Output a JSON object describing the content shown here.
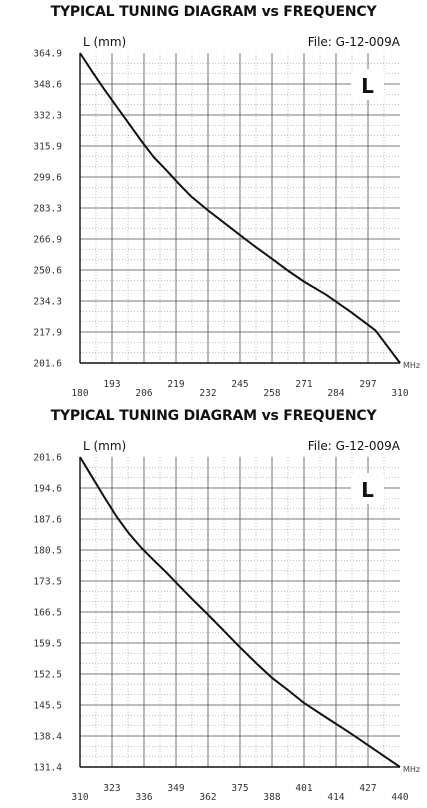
{
  "chart_data": [
    {
      "type": "line",
      "title": "TYPICAL TUNING DIAGRAM vs FREQUENCY",
      "ylabel": "L (mm)",
      "xunit": "MHz",
      "file": "File:  G-12-009A",
      "badge": "L",
      "xlim": [
        180,
        310
      ],
      "ylim": [
        201.6,
        364.9
      ],
      "xticks_bottom": [
        "180",
        "206",
        "232",
        "258",
        "284",
        "310"
      ],
      "xticks_top": [
        "193",
        "219",
        "245",
        "271",
        "297"
      ],
      "yticks": [
        "364.9",
        "348.6",
        "332.3",
        "315.9",
        "299.6",
        "283.3",
        "266.9",
        "250.6",
        "234.3",
        "217.9",
        "201.6"
      ],
      "grid": true,
      "series": [
        {
          "x": [
            180,
            185,
            190,
            195,
            200,
            205,
            210,
            215,
            220,
            225,
            232,
            240,
            245,
            250,
            258,
            265,
            271,
            280,
            290,
            300,
            310
          ],
          "y": [
            364.9,
            355.0,
            345.5,
            336.5,
            327.5,
            318.5,
            310.0,
            303.2,
            296.2,
            289.5,
            282.0,
            274.0,
            269.0,
            264.0,
            256.5,
            249.8,
            244.5,
            237.5,
            228.5,
            218.8,
            201.6
          ]
        }
      ]
    },
    {
      "type": "line",
      "title": "TYPICAL TUNING DIAGRAM vs FREQUENCY",
      "ylabel": "L (mm)",
      "xunit": "MHz",
      "file": "File:  G-12-009A",
      "badge": "L",
      "xlim": [
        310,
        440
      ],
      "ylim": [
        131.4,
        201.6
      ],
      "xticks_bottom": [
        "310",
        "336",
        "362",
        "388",
        "414",
        "440"
      ],
      "xticks_top": [
        "323",
        "349",
        "375",
        "401",
        "427"
      ],
      "yticks": [
        "201.6",
        "194.6",
        "187.6",
        "180.5",
        "173.5",
        "166.5",
        "159.5",
        "152.5",
        "145.5",
        "138.4",
        "131.4"
      ],
      "grid": true,
      "series": [
        {
          "x": [
            310,
            315,
            320,
            325,
            330,
            335,
            340,
            345,
            350,
            356,
            362,
            368,
            375,
            382,
            388,
            395,
            401,
            410,
            420,
            430,
            440
          ],
          "y": [
            201.6,
            197.0,
            192.4,
            188.0,
            184.2,
            181.0,
            178.2,
            175.5,
            172.6,
            169.2,
            165.9,
            162.5,
            158.5,
            154.7,
            151.6,
            148.6,
            145.9,
            142.6,
            139.0,
            135.2,
            131.4
          ]
        }
      ]
    }
  ]
}
